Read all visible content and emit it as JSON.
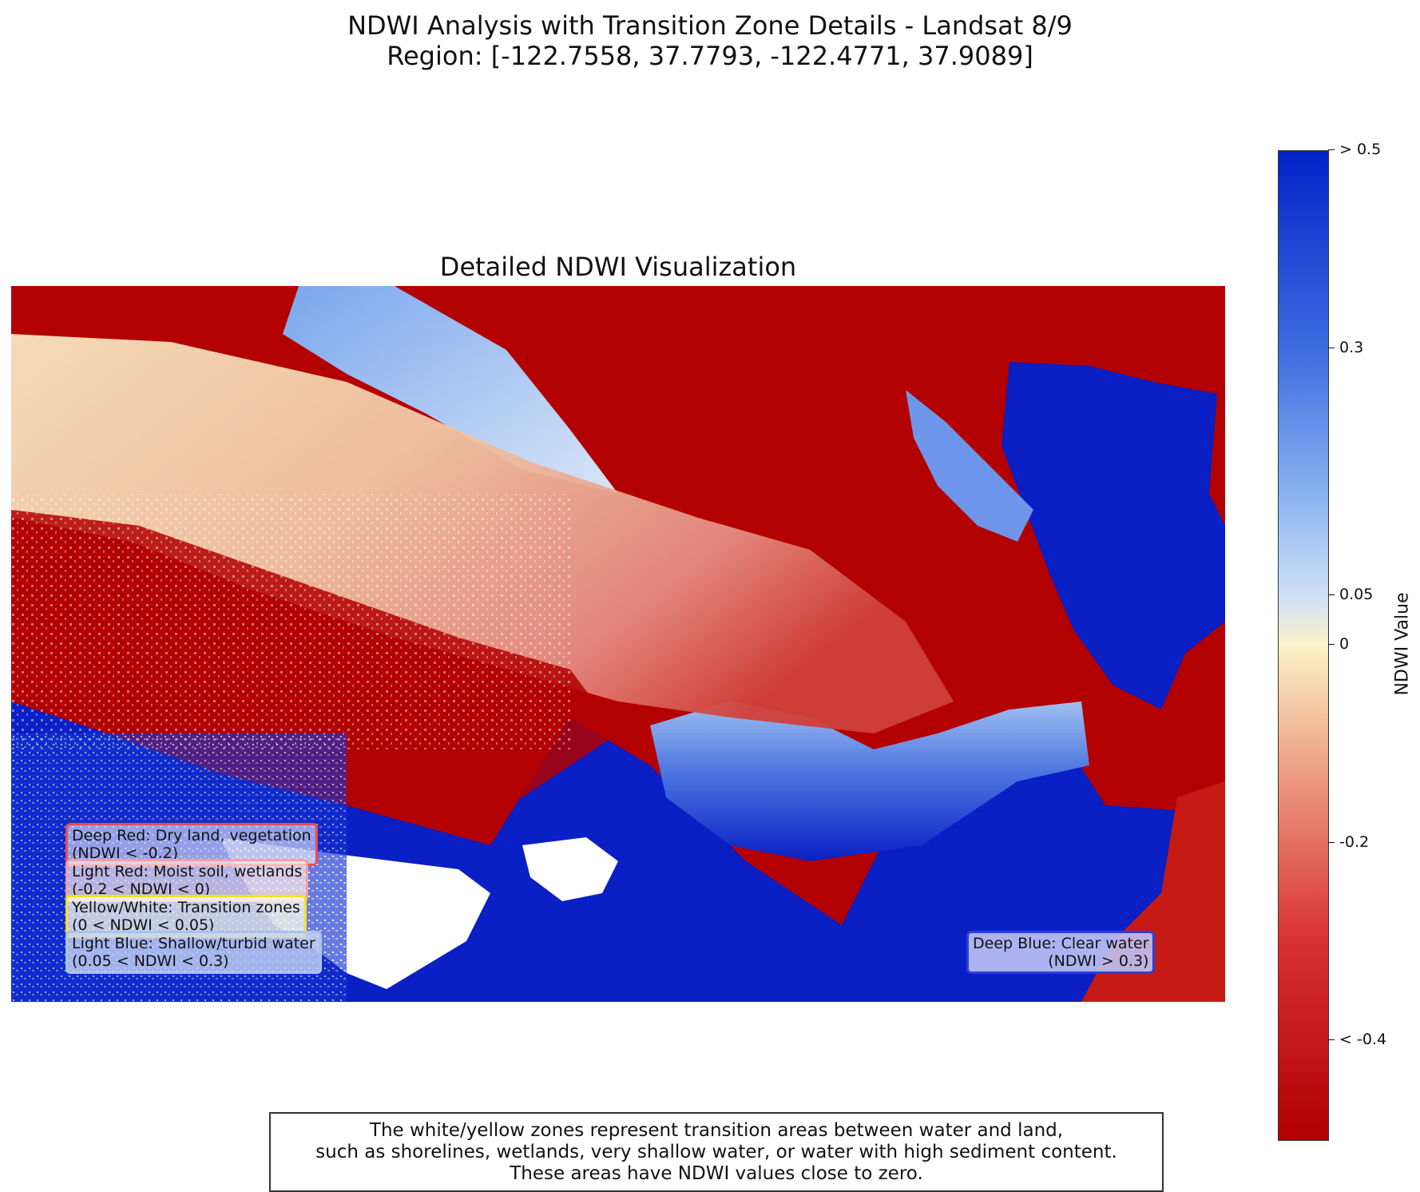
{
  "figure": {
    "title_line1": "NDWI Analysis with Transition Zone Details - Landsat 8/9",
    "title_line2": "Region: [-122.7558, 37.7793, -122.4771, 37.9089]"
  },
  "chart_data": {
    "type": "heatmap",
    "title": "Detailed NDWI Visualization",
    "region_bbox": [
      -122.7558,
      37.7793,
      -122.4771,
      37.9089
    ],
    "axes": "off",
    "colormap": "RdYlBu-like (red → cream/white → blue)",
    "value_range": [
      -0.5,
      0.5
    ],
    "colorbar": {
      "label": "NDWI Value",
      "ticks": [
        {
          "value": 0.5,
          "label": "> 0.5"
        },
        {
          "value": 0.3,
          "label": "0.3"
        },
        {
          "value": 0.05,
          "label": "0.05"
        },
        {
          "value": 0.0,
          "label": "0"
        },
        {
          "value": -0.2,
          "label": "-0.2"
        },
        {
          "value": -0.4,
          "label": "< -0.4"
        }
      ],
      "stops": [
        {
          "value": -0.5,
          "color": "#b00000"
        },
        {
          "value": -0.3,
          "color": "#d93030"
        },
        {
          "value": -0.1,
          "color": "#f0b090"
        },
        {
          "value": 0.0,
          "color": "#fbf2c8"
        },
        {
          "value": 0.05,
          "color": "#cfe0f7"
        },
        {
          "value": 0.15,
          "color": "#8ab4f0"
        },
        {
          "value": 0.3,
          "color": "#3d6ce0"
        },
        {
          "value": 0.5,
          "color": "#0022c8"
        }
      ]
    },
    "annotations": {
      "deep_red": "Deep Red: Dry land, vegetation\n(NDWI < -0.2)",
      "light_red": "Light Red: Moist soil, wetlands\n(-0.2 < NDWI < 0)",
      "transition": "Yellow/White: Transition zones\n(0 < NDWI < 0.05)",
      "light_blue": "Light Blue: Shallow/turbid water\n(0.05 < NDWI < 0.3)",
      "deep_blue": "Deep Blue: Clear water\n(NDWI > 0.3)"
    }
  },
  "caption": {
    "line1": "The white/yellow zones represent transition areas between water and land,",
    "line2": "such as shorelines, wetlands, very shallow water, or water with high sediment content.",
    "line3": "These areas have NDWI values close to zero."
  },
  "colors": {
    "deep_red": "#b00000",
    "light_red": "#e88a7e",
    "cream": "#f7e4b8",
    "light_blue": "#8ab4f0",
    "deep_blue": "#0a1fc4",
    "white": "#ffffff"
  }
}
